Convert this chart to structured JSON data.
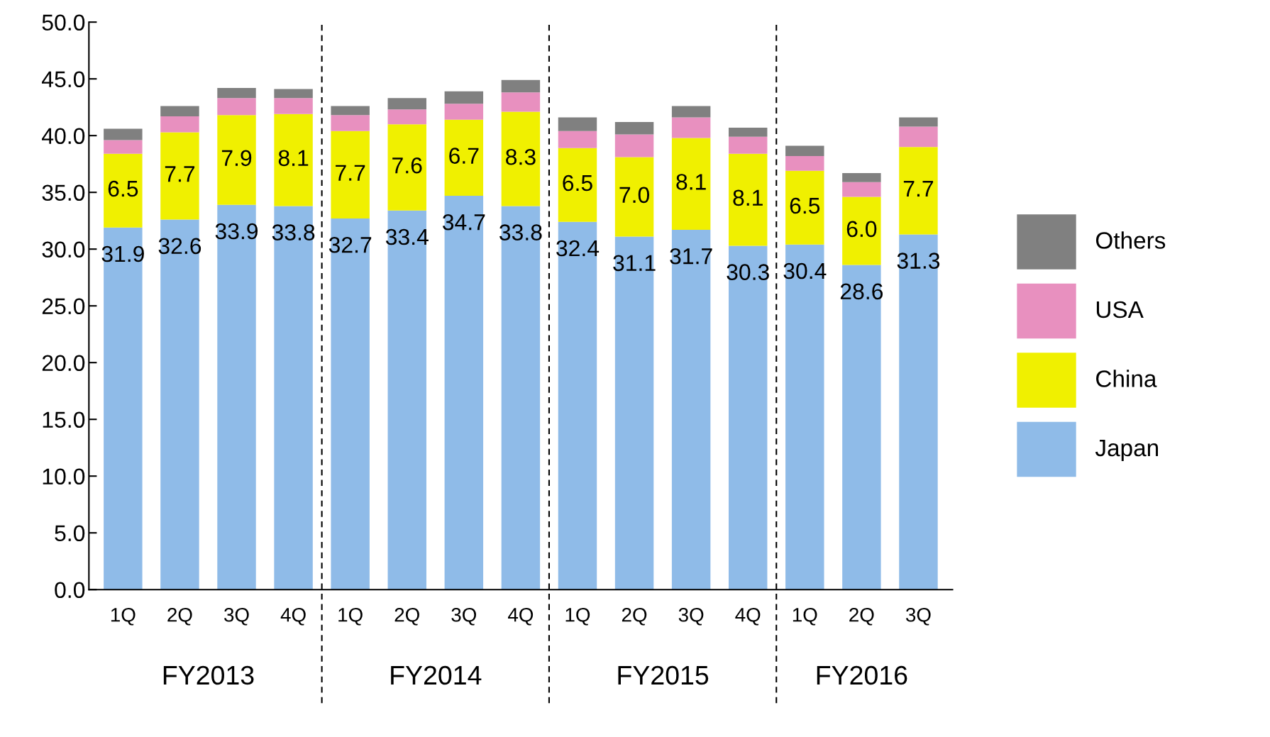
{
  "chart_data": {
    "type": "bar",
    "stacked": true,
    "categories": [
      "1Q",
      "2Q",
      "3Q",
      "4Q",
      "1Q",
      "2Q",
      "3Q",
      "4Q",
      "1Q",
      "2Q",
      "3Q",
      "4Q",
      "1Q",
      "2Q",
      "3Q"
    ],
    "series": [
      {
        "name": "Japan",
        "color": "#8fbbe8",
        "values": [
          31.9,
          32.6,
          33.9,
          33.8,
          32.7,
          33.4,
          34.7,
          33.8,
          32.4,
          31.1,
          31.7,
          30.3,
          30.4,
          28.6,
          31.3
        ],
        "value_labels": [
          "31.9",
          "32.6",
          "33.9",
          "33.8",
          "32.7",
          "33.4",
          "34.7",
          "33.8",
          "32.4",
          "31.1",
          "31.7",
          "30.3",
          "30.4",
          "28.6",
          "31.3"
        ]
      },
      {
        "name": "China",
        "color": "#f0f000",
        "values": [
          6.5,
          7.7,
          7.9,
          8.1,
          7.7,
          7.6,
          6.7,
          8.3,
          6.5,
          7.0,
          8.1,
          8.1,
          6.5,
          6.0,
          7.7
        ],
        "value_labels": [
          "6.5",
          "7.7",
          "7.9",
          "8.1",
          "7.7",
          "7.6",
          "6.7",
          "8.3",
          "6.5",
          "7.0",
          "8.1",
          "8.1",
          "6.5",
          "6.0",
          "7.7"
        ]
      },
      {
        "name": "USA",
        "color": "#e890bf",
        "values": [
          1.2,
          1.4,
          1.5,
          1.4,
          1.4,
          1.3,
          1.4,
          1.7,
          1.5,
          2.0,
          1.8,
          1.5,
          1.3,
          1.3,
          1.8
        ]
      },
      {
        "name": "Others",
        "color": "#808080",
        "values": [
          1.0,
          0.9,
          0.9,
          0.8,
          0.8,
          1.0,
          1.1,
          1.1,
          1.2,
          1.1,
          1.0,
          0.8,
          0.9,
          0.8,
          0.8
        ]
      }
    ],
    "ylim": [
      0,
      50
    ],
    "yticks": [
      {
        "value": 0,
        "label": "0.0"
      },
      {
        "value": 5,
        "label": "5.0"
      },
      {
        "value": 10,
        "label": "10.0"
      },
      {
        "value": 15,
        "label": "15.0"
      },
      {
        "value": 20,
        "label": "20.0"
      },
      {
        "value": 25,
        "label": "25.0"
      },
      {
        "value": 30,
        "label": "30.0"
      },
      {
        "value": 35,
        "label": "35.0"
      },
      {
        "value": 40,
        "label": "40.0"
      },
      {
        "value": 45,
        "label": "45.0"
      },
      {
        "value": 50,
        "label": "50.0"
      }
    ],
    "annotations": [
      "FY2013",
      "FY2014",
      "FY2015",
      "FY2016"
    ],
    "grid": false,
    "legend": "right"
  }
}
